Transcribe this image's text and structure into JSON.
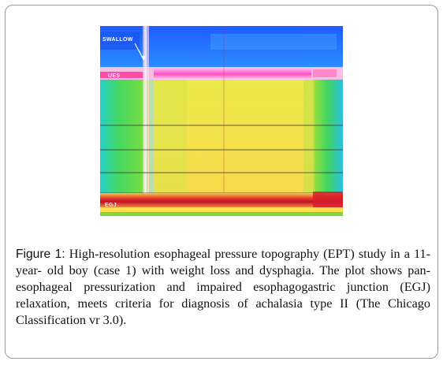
{
  "figure": {
    "plot": {
      "labels": {
        "swallow": "SWALLOW",
        "ues": "UES",
        "egj": "EGJ"
      },
      "colors": {
        "background_blue": "#2a6cff",
        "pressurization_yellow": "#f2e44a",
        "band_red": "#d81c2c",
        "sphincter_magenta": "#ff4da6",
        "green": "#3bd25a",
        "cyan": "#29c7d8"
      }
    },
    "caption": {
      "lead": "Figure 1:",
      "text": " High-resolution esophageal pressure topography (EPT) study in a 11-year- old boy (case 1) with weight loss and dysphagia. The plot shows pan-esophageal pressurization and impaired esophagogastric junction (EGJ) relaxation, meets criteria for diagnosis of achalasia type II (The Chicago Classification vr 3.0)."
    }
  }
}
